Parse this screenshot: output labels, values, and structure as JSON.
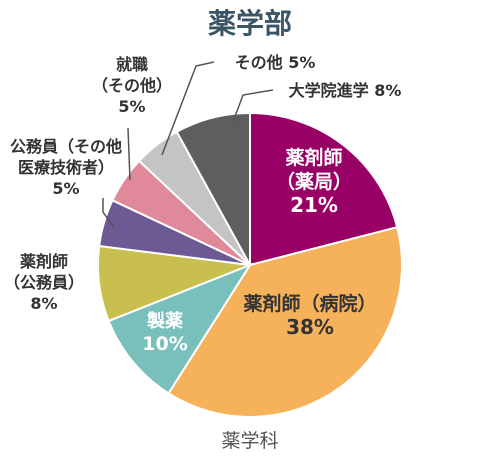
{
  "chart_data": {
    "type": "pie",
    "title": "薬学部",
    "footer": "薬学科",
    "slices": [
      {
        "label_lines": [
          "薬剤師",
          "（薬局）"
        ],
        "pct_text": "21%",
        "value": 21,
        "color": "#990066",
        "text_color": "#ffffff"
      },
      {
        "label_lines": [
          "薬剤師（病院）"
        ],
        "pct_text": "38%",
        "value": 38,
        "color": "#f5b25a",
        "text_color": "#333333"
      },
      {
        "label_lines": [
          "製薬"
        ],
        "pct_text": "10%",
        "value": 10,
        "color": "#79bfbb",
        "text_color": "#ffffff"
      },
      {
        "label_lines": [
          "薬剤師",
          "（公務員）"
        ],
        "pct_text": "8%",
        "value": 8,
        "color": "#c9bf4e",
        "text_color": "#333333"
      },
      {
        "label_lines": [
          "公務員（その他",
          "医療技術者）"
        ],
        "pct_text": "5%",
        "value": 5,
        "color": "#6d5a94",
        "text_color": "#333333"
      },
      {
        "label_lines": [
          "就職",
          "（その他）"
        ],
        "pct_text": "5%",
        "value": 5,
        "color": "#e0899a",
        "text_color": "#333333"
      },
      {
        "label_lines": [
          "その他"
        ],
        "pct_text": "5%",
        "value": 5,
        "color": "#c4c4c4",
        "text_color": "#333333"
      },
      {
        "label_lines": [
          "大学院進学"
        ],
        "pct_text": "8%",
        "value": 8,
        "color": "#5e5e5e",
        "text_color": "#333333"
      }
    ]
  }
}
